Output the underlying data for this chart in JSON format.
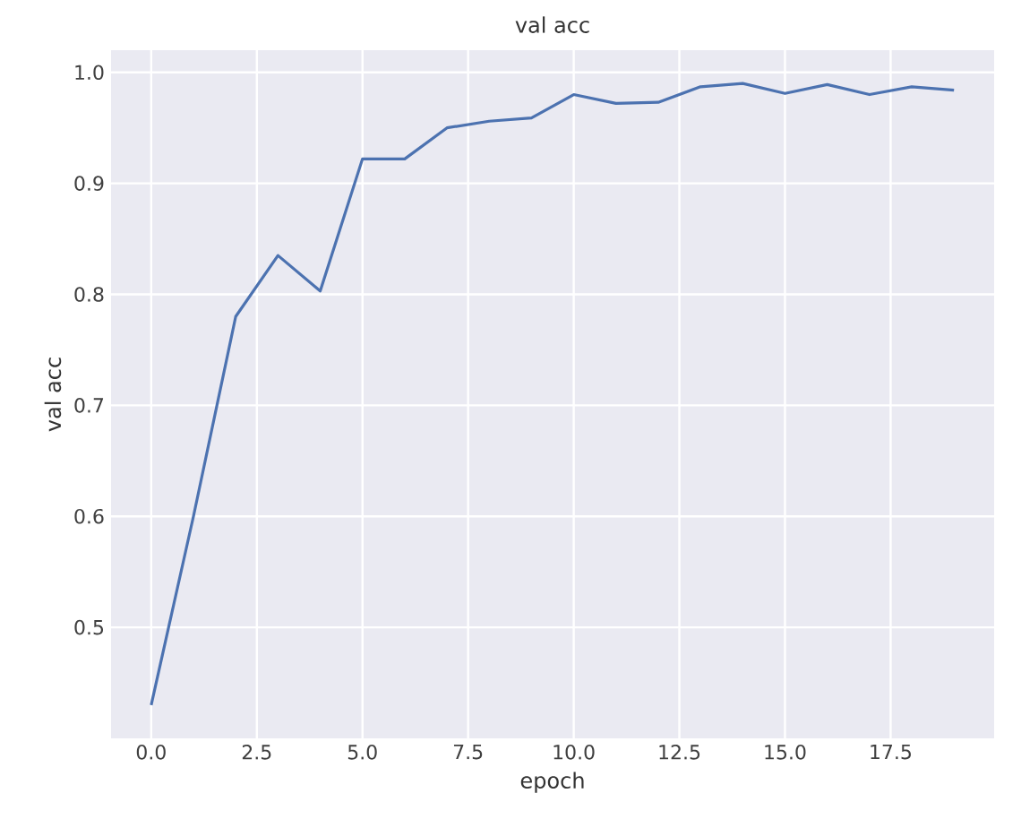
{
  "chart_data": {
    "type": "line",
    "title": "val acc",
    "xlabel": "epoch",
    "ylabel": "val acc",
    "x": [
      0,
      1,
      2,
      3,
      4,
      5,
      6,
      7,
      8,
      9,
      10,
      11,
      12,
      13,
      14,
      15,
      16,
      17,
      18,
      19
    ],
    "series": [
      {
        "color": "#4c72b0",
        "values": [
          0.43,
          0.6,
          0.78,
          0.835,
          0.803,
          0.922,
          0.922,
          0.95,
          0.956,
          0.959,
          0.98,
          0.972,
          0.973,
          0.987,
          0.99,
          0.981,
          0.989,
          0.98,
          0.987,
          0.984
        ]
      }
    ],
    "xlim": [
      -0.95,
      19.95
    ],
    "ylim": [
      0.4,
      1.02
    ],
    "xticks": [
      {
        "value": 0,
        "label": "0.0"
      },
      2.5,
      {
        "value": 5,
        "label": "5.0"
      },
      7.5,
      {
        "value": 10,
        "label": "10.0"
      },
      12.5,
      {
        "value": 15,
        "label": "15.0"
      },
      17.5
    ],
    "yticks": [
      0.5,
      0.6,
      0.7,
      0.8,
      0.9,
      {
        "value": 1,
        "label": "1.0"
      }
    ],
    "grid": true,
    "marker": "none",
    "line_style": "solid"
  }
}
